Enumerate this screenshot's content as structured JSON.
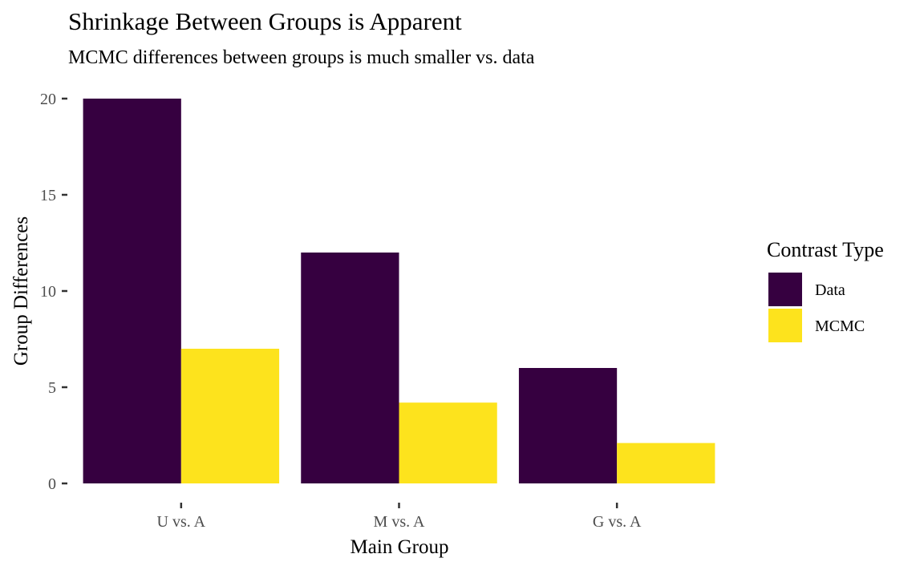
{
  "chart_data": {
    "type": "bar",
    "title": "Shrinkage Between Groups is Apparent",
    "subtitle": "MCMC differences between groups is much smaller vs. data",
    "xlabel": "Main Group",
    "ylabel": "Group Differences",
    "categories": [
      "U vs. A",
      "M vs. A",
      "G vs. A"
    ],
    "series": [
      {
        "name": "Data",
        "values": [
          20,
          12,
          6
        ],
        "color": "#360040"
      },
      {
        "name": "MCMC",
        "values": [
          7,
          4.2,
          2.1
        ],
        "color": "#fde31d"
      }
    ],
    "ylim": [
      0,
      20
    ],
    "yticks": [
      0,
      5,
      10,
      15,
      20
    ],
    "grid": false,
    "legend": {
      "title": "Contrast Type",
      "position": "right"
    }
  }
}
